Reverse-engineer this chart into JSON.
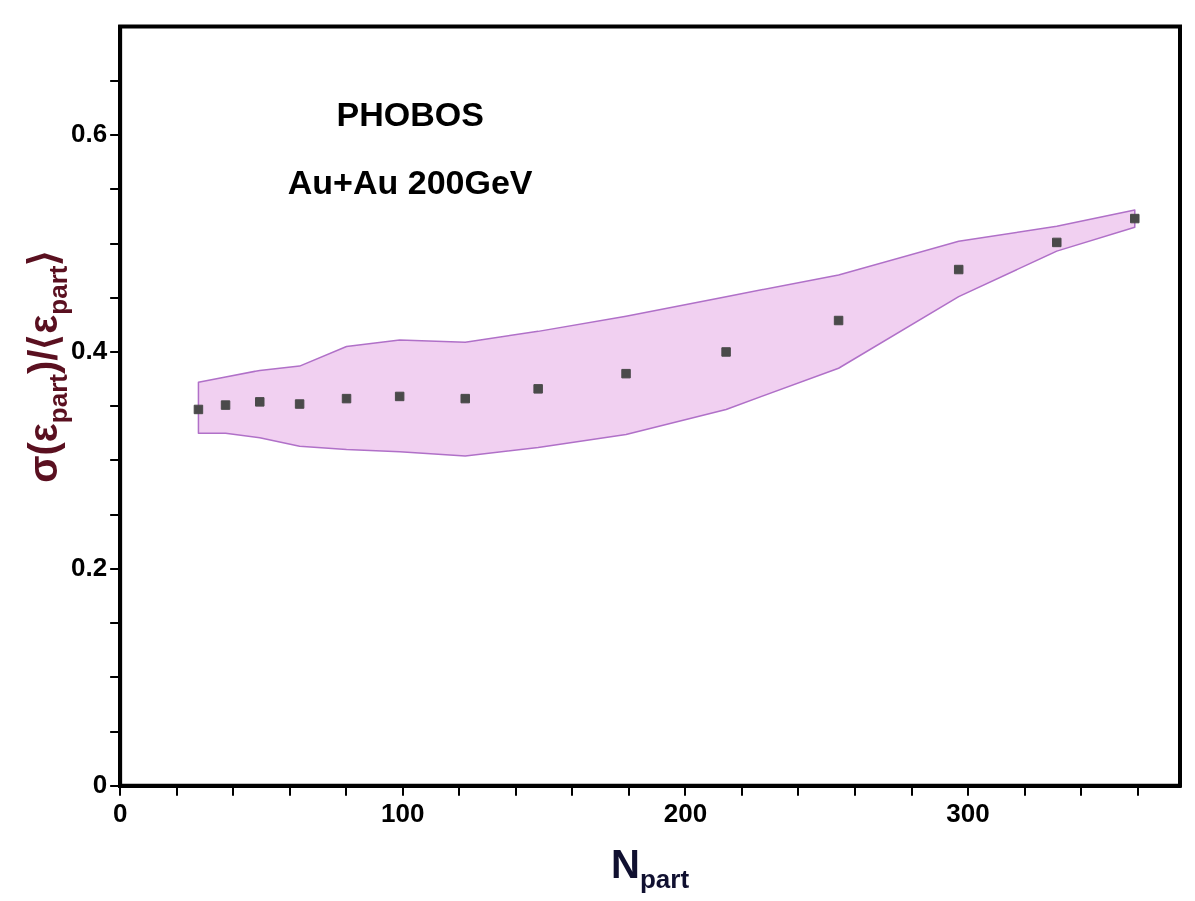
{
  "chart_data": {
    "type": "scatter",
    "xlabel": "N$_{part}$",
    "ylabel": "σ(ε$_{part}$)/⟨ε$_{part}$⟩",
    "annotations": [
      "PHOBOS",
      "Au+Au 200GeV"
    ],
    "x": [
      27.7,
      37.3,
      49.4,
      63.5,
      80.1,
      98.9,
      122.1,
      147.9,
      179,
      214.4,
      254.2,
      296.7,
      331.4,
      359
    ],
    "series": [
      {
        "color": "#4a4a4a",
        "values": [
          0.347,
          0.351,
          0.354,
          0.352,
          0.357,
          0.359,
          0.357,
          0.366,
          0.38,
          0.4,
          0.429,
          0.476,
          0.501,
          0.523
        ],
        "upper": [
          0.372,
          0.377,
          0.383,
          0.387,
          0.405,
          0.411,
          0.409,
          0.419,
          0.433,
          0.451,
          0.471,
          0.502,
          0.516,
          0.531
        ],
        "lower": [
          0.325,
          0.325,
          0.321,
          0.313,
          0.31,
          0.308,
          0.304,
          0.312,
          0.324,
          0.347,
          0.385,
          0.451,
          0.493,
          0.515
        ]
      }
    ],
    "xlim": [
      0,
      375
    ],
    "ylim": [
      0,
      0.7
    ],
    "xticks": [
      0,
      {
        "value": 20,
        "label": null
      },
      {
        "value": 40,
        "label": null
      },
      {
        "value": 60,
        "label": null
      },
      {
        "value": 80,
        "label": null
      },
      100,
      {
        "value": 120,
        "label": null
      },
      {
        "value": 140,
        "label": null
      },
      {
        "value": 160,
        "label": null
      },
      {
        "value": 180,
        "label": null
      },
      200,
      {
        "value": 220,
        "label": null
      },
      {
        "value": 240,
        "label": null
      },
      {
        "value": 260,
        "label": null
      },
      {
        "value": 280,
        "label": null
      },
      300,
      {
        "value": 320,
        "label": null
      },
      {
        "value": 340,
        "label": null
      },
      {
        "value": 360,
        "label": null
      }
    ],
    "yticks": [
      0,
      {
        "value": 0.05,
        "label": null
      },
      {
        "value": 0.1,
        "label": null
      },
      {
        "value": 0.15,
        "label": null
      },
      0.2,
      {
        "value": 0.25,
        "label": null
      },
      {
        "value": 0.3,
        "label": null
      },
      {
        "value": 0.35,
        "label": null
      },
      0.4,
      {
        "value": 0.45,
        "label": null
      },
      {
        "value": 0.5,
        "label": null
      },
      {
        "value": 0.55,
        "label": null
      },
      0.6,
      {
        "value": 0.65,
        "label": null
      }
    ],
    "grid": false,
    "legend": false,
    "marker": "square"
  }
}
